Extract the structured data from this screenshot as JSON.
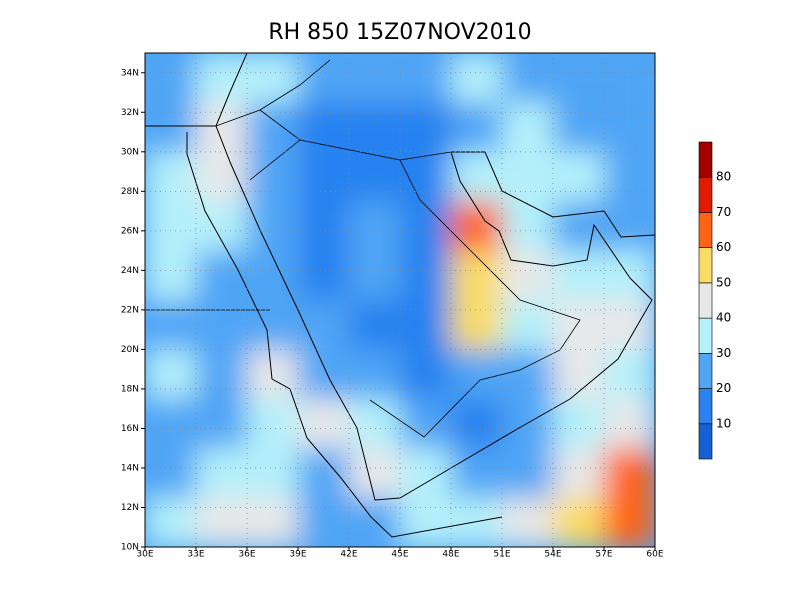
{
  "chart_data": {
    "type": "map",
    "title": "RH 850 15Z07NOV2010",
    "xlim": [
      30,
      60
    ],
    "ylim": [
      10,
      35
    ],
    "xticks": [
      {
        "value": 30,
        "label": "30E"
      },
      {
        "value": 33,
        "label": "33E"
      },
      {
        "value": 36,
        "label": "36E"
      },
      {
        "value": 39,
        "label": "39E"
      },
      {
        "value": 42,
        "label": "42E"
      },
      {
        "value": 45,
        "label": "45E"
      },
      {
        "value": 48,
        "label": "48E"
      },
      {
        "value": 51,
        "label": "51E"
      },
      {
        "value": 54,
        "label": "54E"
      },
      {
        "value": 57,
        "label": "57E"
      },
      {
        "value": 60,
        "label": "60E"
      }
    ],
    "yticks": [
      {
        "value": 10,
        "label": "10N"
      },
      {
        "value": 12,
        "label": "12N"
      },
      {
        "value": 14,
        "label": "14N"
      },
      {
        "value": 16,
        "label": "16N"
      },
      {
        "value": 18,
        "label": "18N"
      },
      {
        "value": 20,
        "label": "20N"
      },
      {
        "value": 22,
        "label": "22N"
      },
      {
        "value": 24,
        "label": "24N"
      },
      {
        "value": 26,
        "label": "26N"
      },
      {
        "value": 28,
        "label": "28N"
      },
      {
        "value": 30,
        "label": "30N"
      },
      {
        "value": 32,
        "label": "32N"
      },
      {
        "value": 34,
        "label": "34N"
      }
    ],
    "grid": true,
    "colorbar": {
      "levels": [
        10,
        20,
        30,
        40,
        50,
        60,
        70,
        80
      ],
      "colors": [
        "#1462d2",
        "#2882f0",
        "#50a5f5",
        "#b4f0fa",
        "#e8e8e8",
        "#fadc64",
        "#ff6414",
        "#e11a00",
        "#a50000"
      ]
    },
    "field": {
      "lon_edges": [
        30,
        33,
        36,
        39,
        42,
        45,
        48,
        51,
        54,
        57,
        60
      ],
      "lat_edges": [
        35,
        32.5,
        30,
        27.5,
        25,
        22.5,
        20,
        17.5,
        15,
        12.5,
        10
      ],
      "values": [
        [
          25,
          30,
          35,
          20,
          25,
          20,
          35,
          25,
          25,
          20
        ],
        [
          20,
          45,
          25,
          15,
          15,
          15,
          25,
          35,
          25,
          20
        ],
        [
          35,
          40,
          25,
          15,
          15,
          15,
          35,
          30,
          30,
          20
        ],
        [
          35,
          30,
          20,
          15,
          20,
          15,
          60,
          35,
          25,
          25
        ],
        [
          30,
          25,
          25,
          15,
          20,
          15,
          55,
          45,
          35,
          30
        ],
        [
          25,
          20,
          25,
          25,
          15,
          15,
          55,
          35,
          40,
          40
        ],
        [
          30,
          25,
          45,
          25,
          25,
          15,
          25,
          25,
          40,
          35
        ],
        [
          25,
          25,
          35,
          40,
          30,
          20,
          15,
          20,
          35,
          40
        ],
        [
          25,
          30,
          30,
          25,
          40,
          35,
          25,
          25,
          40,
          60
        ],
        [
          35,
          40,
          40,
          25,
          25,
          30,
          30,
          45,
          55,
          60
        ]
      ]
    }
  }
}
